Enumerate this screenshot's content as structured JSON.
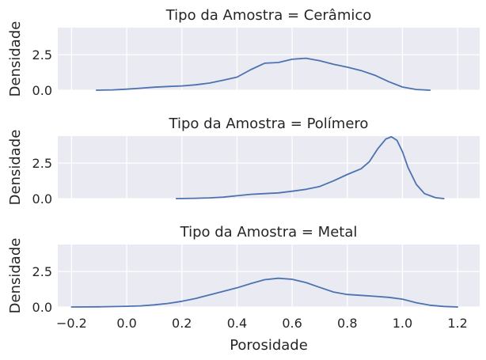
{
  "chart_data": {
    "type": "line",
    "xlabel": "Porosidade",
    "ylabel": "Densidade",
    "xlim": [
      -0.25,
      1.28
    ],
    "ylim": [
      0,
      4.4
    ],
    "xticks": [
      -0.2,
      0.0,
      0.2,
      0.4,
      0.6,
      0.8,
      1.0,
      1.2
    ],
    "xtick_labels": [
      "−0.2",
      "0.0",
      "0.2",
      "0.4",
      "0.6",
      "0.8",
      "1.0",
      "1.2"
    ],
    "yticks": [
      0,
      2.5
    ],
    "ytick_labels": [
      "0.0",
      "2.5"
    ],
    "grid": true,
    "panels": [
      {
        "title": "Tipo da Amostra = Cerâmico",
        "x": [
          -0.11,
          -0.05,
          0.0,
          0.05,
          0.1,
          0.15,
          0.2,
          0.25,
          0.3,
          0.35,
          0.4,
          0.45,
          0.5,
          0.55,
          0.6,
          0.65,
          0.7,
          0.75,
          0.8,
          0.85,
          0.9,
          0.95,
          1.0,
          1.05,
          1.1
        ],
        "y": [
          0.0,
          0.02,
          0.07,
          0.14,
          0.21,
          0.26,
          0.3,
          0.38,
          0.5,
          0.7,
          0.92,
          1.45,
          1.9,
          1.95,
          2.18,
          2.25,
          2.08,
          1.82,
          1.62,
          1.38,
          1.05,
          0.6,
          0.22,
          0.05,
          0.0
        ]
      },
      {
        "title": "Tipo da Amostra = Polímero",
        "x": [
          0.18,
          0.25,
          0.3,
          0.35,
          0.4,
          0.45,
          0.5,
          0.55,
          0.6,
          0.65,
          0.7,
          0.75,
          0.8,
          0.85,
          0.88,
          0.91,
          0.94,
          0.96,
          0.98,
          1.0,
          1.02,
          1.05,
          1.08,
          1.12,
          1.15
        ],
        "y": [
          0.0,
          0.02,
          0.05,
          0.1,
          0.2,
          0.3,
          0.35,
          0.4,
          0.52,
          0.65,
          0.85,
          1.25,
          1.7,
          2.1,
          2.6,
          3.5,
          4.2,
          4.35,
          4.1,
          3.3,
          2.2,
          1.0,
          0.35,
          0.06,
          0.0
        ]
      },
      {
        "title": "Tipo da Amostra = Metal",
        "x": [
          -0.2,
          -0.1,
          0.0,
          0.05,
          0.1,
          0.15,
          0.2,
          0.25,
          0.3,
          0.35,
          0.4,
          0.45,
          0.5,
          0.55,
          0.6,
          0.65,
          0.7,
          0.75,
          0.8,
          0.85,
          0.9,
          0.95,
          1.0,
          1.05,
          1.1,
          1.15,
          1.2
        ],
        "y": [
          0.0,
          0.01,
          0.05,
          0.08,
          0.15,
          0.25,
          0.4,
          0.6,
          0.85,
          1.1,
          1.35,
          1.65,
          1.92,
          2.02,
          1.95,
          1.72,
          1.38,
          1.05,
          0.88,
          0.82,
          0.75,
          0.68,
          0.55,
          0.3,
          0.12,
          0.04,
          0.0
        ]
      }
    ]
  }
}
